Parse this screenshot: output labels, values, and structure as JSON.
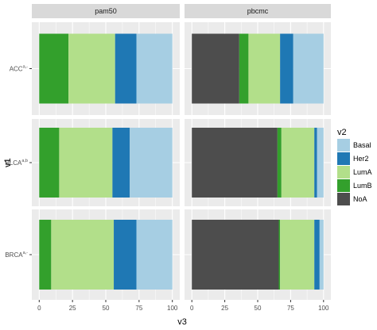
{
  "chart_data": {
    "type": "bar",
    "orientation": "horizontal",
    "stacked": true,
    "xlabel": "v3",
    "ylabel": "v1",
    "xlim": [
      0,
      100
    ],
    "x_ticks": [
      "0",
      "25",
      "50",
      "75",
      "100"
    ],
    "panels": [
      "pam50",
      "pbcmc"
    ],
    "rows": [
      {
        "name": "ACC",
        "sup": "a,-"
      },
      {
        "name": "BLCA",
        "sup": "a,b"
      },
      {
        "name": "BRCA",
        "sup": "a,-"
      }
    ],
    "legend": {
      "title": "v2",
      "position": "right",
      "entries": [
        {
          "name": "Basal",
          "color": "#a6cee3"
        },
        {
          "name": "Her2",
          "color": "#1f78b4"
        },
        {
          "name": "LumA",
          "color": "#b2df8a"
        },
        {
          "name": "LumB",
          "color": "#33a02c"
        },
        {
          "name": "NoA",
          "color": "#4d4d4d"
        }
      ]
    },
    "stack_order": [
      "LumB",
      "LumA",
      "Her2",
      "Basal",
      "NoA"
    ],
    "pbcmc_stack_order": [
      "NoA",
      "LumB",
      "LumA",
      "Her2",
      "Basal"
    ],
    "values": {
      "pam50": {
        "ACC": {
          "LumB": 22,
          "LumA": 35,
          "Her2": 16,
          "Basal": 27,
          "NoA": 0
        },
        "BLCA": {
          "LumB": 15,
          "LumA": 40,
          "Her2": 13,
          "Basal": 32,
          "NoA": 0
        },
        "BRCA": {
          "LumB": 9,
          "LumA": 47,
          "Her2": 17,
          "Basal": 27,
          "NoA": 0
        }
      },
      "pbcmc": {
        "ACC": {
          "NoA": 36,
          "LumB": 7,
          "LumA": 24,
          "Her2": 10,
          "Basal": 23
        },
        "BLCA": {
          "NoA": 65,
          "LumB": 3,
          "LumA": 25,
          "Her2": 2,
          "Basal": 5
        },
        "BRCA": {
          "NoA": 66,
          "LumB": 1,
          "LumA": 26,
          "Her2": 4,
          "Basal": 3
        }
      }
    },
    "grid": true
  }
}
